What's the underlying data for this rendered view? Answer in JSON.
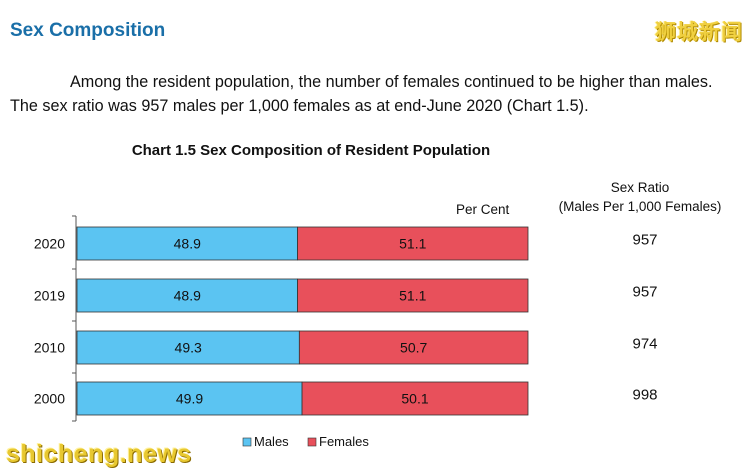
{
  "section_title": "Sex Composition",
  "intro_text": "Among the resident population, the number of females continued to be higher than males. The sex ratio was 957 males per 1,000 females as at end-June 2020 (Chart 1.5).",
  "watermark_top": "狮城新闻",
  "watermark_bottom": "shicheng.news",
  "colors": {
    "heading": "#1a6fa8",
    "males": "#5bc4f2",
    "females": "#e8505b"
  },
  "chart_data": {
    "type": "bar",
    "orientation": "horizontal",
    "stacked": true,
    "title": "Chart 1.5  Sex Composition of Resident Population",
    "unit_label": "Per Cent",
    "categories": [
      "2020",
      "2019",
      "2010",
      "2000"
    ],
    "series": [
      {
        "name": "Males",
        "values": [
          48.9,
          48.9,
          49.3,
          49.9
        ]
      },
      {
        "name": "Females",
        "values": [
          51.1,
          51.1,
          50.7,
          50.1
        ]
      }
    ],
    "xlim": [
      0,
      100
    ],
    "legend_position": "bottom",
    "side_column": {
      "header_line1": "Sex Ratio",
      "header_line2": "(Males Per 1,000 Females)",
      "values": [
        "957",
        "957",
        "974",
        "998"
      ]
    }
  }
}
